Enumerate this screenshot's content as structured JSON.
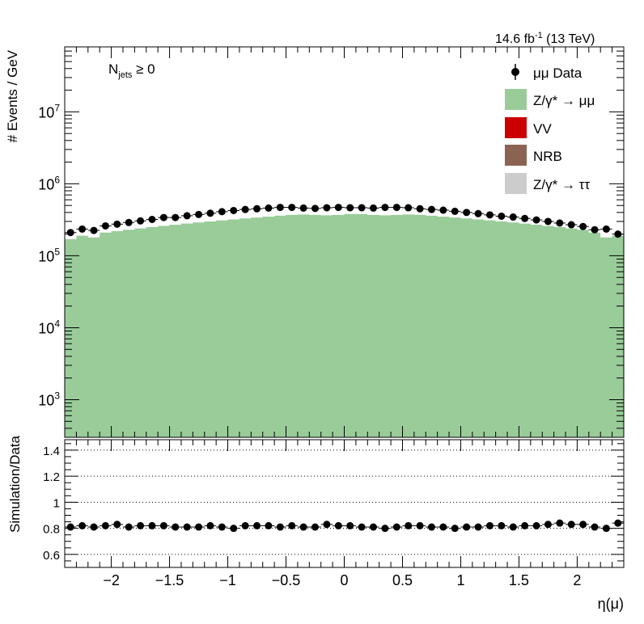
{
  "header": {
    "lumi": "14.6 fb",
    "lumi_exp": "-1",
    "energy": " (13 TeV)"
  },
  "annotation": {
    "main": "N",
    "sub": "jets",
    "rest": " ≥ 0"
  },
  "legend": [
    {
      "label": "μμ Data",
      "kind": "marker",
      "color": "#000000"
    },
    {
      "label": "Z/γ* → μμ",
      "kind": "box",
      "color": "#99cc99"
    },
    {
      "label": "VV",
      "kind": "box",
      "color": "#cc0000"
    },
    {
      "label": "NRB",
      "kind": "box",
      "color": "#8b6352"
    },
    {
      "label": "Z/γ* → ττ",
      "kind": "box",
      "color": "#cccccc"
    }
  ],
  "chart_data": [
    {
      "type": "area",
      "ylabel": "# Events / GeV",
      "yscale": "log",
      "ylim": [
        300,
        80000000
      ],
      "xlim": [
        -2.4,
        2.4
      ],
      "yticks": [
        1000,
        10000,
        100000,
        1000000,
        10000000
      ],
      "ytick_labels": [
        {
          "base": "10",
          "exp": "3"
        },
        {
          "base": "10",
          "exp": "4"
        },
        {
          "base": "10",
          "exp": "5"
        },
        {
          "base": "10",
          "exp": "6"
        },
        {
          "base": "10",
          "exp": "7"
        }
      ],
      "bin_edges_from": -2.4,
      "bin_width": 0.1,
      "series": [
        {
          "name": "Z/γ* → μμ",
          "color": "#99cc99",
          "values": [
            170000,
            190000,
            180000,
            210000,
            220000,
            230000,
            240000,
            250000,
            260000,
            270000,
            280000,
            290000,
            300000,
            310000,
            320000,
            330000,
            340000,
            350000,
            360000,
            370000,
            375000,
            370000,
            365000,
            370000,
            380000,
            380000,
            370000,
            365000,
            370000,
            375000,
            370000,
            360000,
            350000,
            340000,
            330000,
            320000,
            310000,
            300000,
            290000,
            280000,
            270000,
            260000,
            250000,
            240000,
            230000,
            210000,
            180000,
            190000
          ]
        },
        {
          "name": "μμ Data",
          "color": "#000000",
          "values": [
            210000,
            235000,
            225000,
            260000,
            275000,
            290000,
            305000,
            320000,
            340000,
            340000,
            360000,
            375000,
            390000,
            410000,
            425000,
            440000,
            450000,
            460000,
            470000,
            470000,
            460000,
            455000,
            465000,
            470000,
            465000,
            465000,
            460000,
            470000,
            470000,
            465000,
            450000,
            440000,
            430000,
            415000,
            400000,
            385000,
            370000,
            355000,
            345000,
            330000,
            315000,
            300000,
            285000,
            270000,
            255000,
            230000,
            235000,
            200000
          ]
        }
      ]
    },
    {
      "type": "scatter",
      "ylabel": "Simulation/Data",
      "xlabel": "η(μ)",
      "ylim": [
        0.5,
        1.48
      ],
      "xlim": [
        -2.4,
        2.4
      ],
      "yticks": [
        0.6,
        0.8,
        1,
        1.2,
        1.4
      ],
      "ytick_labels": [
        "0.6",
        "0.8",
        "1",
        "1.2",
        "1.4"
      ],
      "xticks": [
        -2,
        -1.5,
        -1,
        -0.5,
        0,
        0.5,
        1,
        1.5,
        2
      ],
      "xtick_labels": [
        "−2",
        "−1.5",
        "−1",
        "−0.5",
        "0",
        "0.5",
        "1",
        "1.5",
        "2"
      ],
      "grid": "y dotted",
      "series": [
        {
          "name": "μμ Data",
          "color": "#000000",
          "values": [
            0.81,
            0.82,
            0.81,
            0.82,
            0.83,
            0.81,
            0.82,
            0.82,
            0.82,
            0.81,
            0.81,
            0.81,
            0.82,
            0.81,
            0.8,
            0.82,
            0.82,
            0.82,
            0.81,
            0.82,
            0.81,
            0.81,
            0.83,
            0.82,
            0.82,
            0.81,
            0.81,
            0.8,
            0.81,
            0.82,
            0.82,
            0.81,
            0.81,
            0.8,
            0.81,
            0.81,
            0.82,
            0.82,
            0.81,
            0.82,
            0.82,
            0.83,
            0.84,
            0.83,
            0.83,
            0.81,
            0.8,
            0.84
          ]
        }
      ]
    }
  ]
}
